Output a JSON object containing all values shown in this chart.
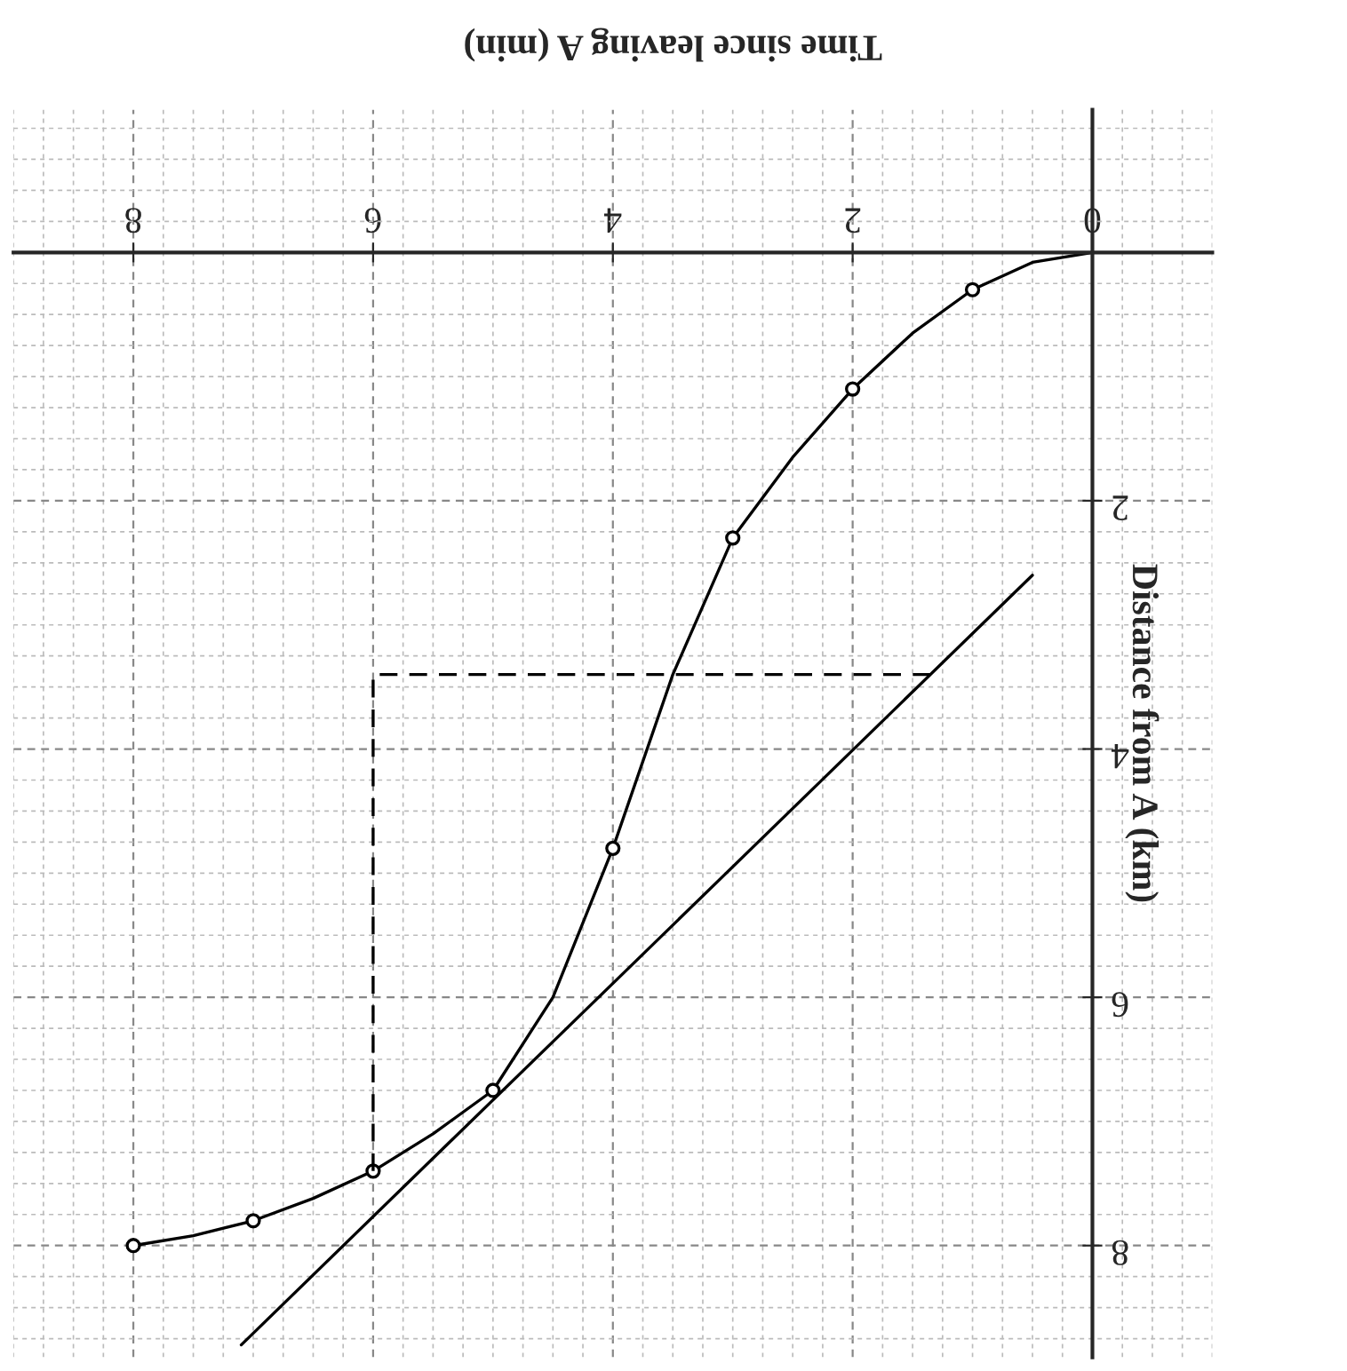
{
  "chart_data": {
    "type": "line",
    "xlabel": "Time since leaving A (min)",
    "ylabel": "Distance from A (km)",
    "xlim": [
      9,
      -1
    ],
    "ylim": [
      8.9,
      -1.15
    ],
    "xticks": [
      0,
      2,
      4,
      6,
      8
    ],
    "yticks": [
      2,
      4,
      6,
      8
    ],
    "grid": true,
    "series": [
      {
        "x": [
          0,
          0.5,
          1,
          1.5,
          2,
          2.5,
          3,
          3.5,
          4,
          4.5,
          5,
          5.5,
          6,
          6.5,
          7,
          7.5,
          8
        ],
        "values": [
          0,
          0.08,
          0.3,
          0.65,
          1.1,
          1.65,
          2.3,
          3.4,
          4.8,
          6.0,
          6.75,
          7.1,
          7.4,
          7.62,
          7.8,
          7.92,
          8.0
        ],
        "color": "#000000",
        "marker": "none"
      },
      {
        "type": "scatter",
        "x": [
          1,
          2,
          3,
          4,
          5,
          6,
          7,
          8
        ],
        "values": [
          0.3,
          1.1,
          2.3,
          4.8,
          6.75,
          7.4,
          7.8,
          8.0
        ],
        "color": "#000000",
        "marker": "circle"
      },
      {
        "x": [
          0.5,
          7.1
        ],
        "values": [
          2.6,
          8.8
        ],
        "color": "#000000",
        "marker": "none"
      },
      {
        "x": [
          1.35,
          6,
          6
        ],
        "values": [
          3.4,
          3.4,
          7.4
        ],
        "color": "#000000",
        "marker": "none",
        "line_style": "dashed"
      }
    ]
  }
}
